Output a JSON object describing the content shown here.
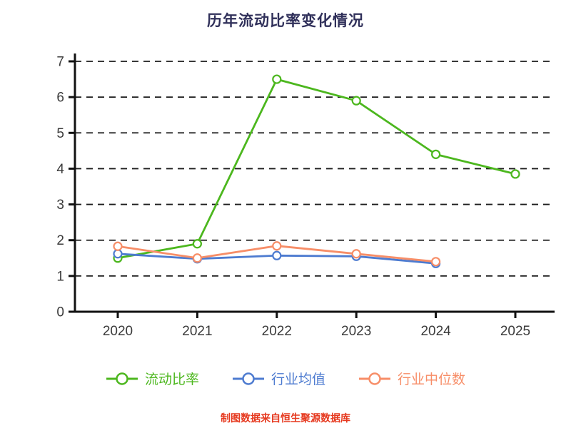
{
  "title": "历年流动比率变化情况",
  "caption": "制图数据来自恒生聚源数据库",
  "colors": {
    "title": "#30305a",
    "caption": "#e6391f",
    "axis": "#111111",
    "grid": "#1c1c1c",
    "tick_label": "#3b3b3b",
    "current-ratio": "#4cb71e",
    "industry-avg": "#4d7bd0",
    "industry-median": "#f78e68"
  },
  "chart_data": {
    "type": "line",
    "x": [
      "2020",
      "2021",
      "2022",
      "2023",
      "2024",
      "2025"
    ],
    "series": [
      {
        "key": "current-ratio",
        "name": "流动比率",
        "values": [
          1.5,
          1.9,
          6.5,
          5.9,
          4.4,
          3.85
        ]
      },
      {
        "key": "industry-avg",
        "name": "行业均值",
        "values": [
          1.62,
          1.48,
          1.57,
          1.55,
          1.35,
          null
        ]
      },
      {
        "key": "industry-median",
        "name": "行业中位数",
        "values": [
          1.83,
          1.5,
          1.84,
          1.62,
          1.4,
          null
        ]
      }
    ],
    "ylim": [
      0,
      7
    ],
    "yticks": [
      0,
      1,
      2,
      3,
      4,
      5,
      6,
      7
    ],
    "grid": "horizontal-dashed",
    "legend_position": "bottom",
    "marker": "circle-hollow"
  }
}
